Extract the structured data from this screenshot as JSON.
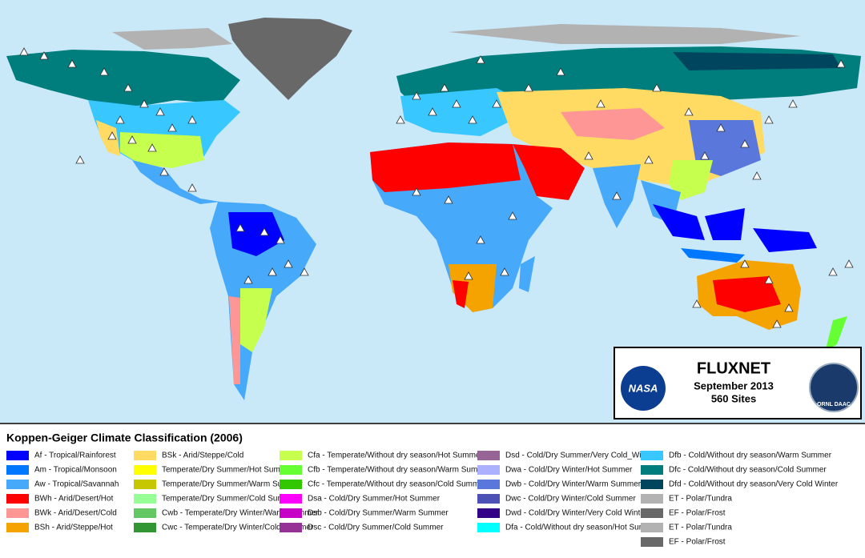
{
  "legend": {
    "title": "Koppen-Geiger Climate Classification (2006)",
    "columns": [
      [
        {
          "label": "Af - Tropical/Rainforest",
          "color": "#0000fe"
        },
        {
          "label": "Am - Tropical/Monsoon",
          "color": "#0077ff"
        },
        {
          "label": "Aw - Tropical/Savannah",
          "color": "#46a9fa"
        },
        {
          "label": "BWh - Arid/Desert/Hot",
          "color": "#fe0000"
        },
        {
          "label": "BWk - Arid/Desert/Cold",
          "color": "#fe9695"
        },
        {
          "label": "BSh - Arid/Steppe/Hot",
          "color": "#f5a301"
        }
      ],
      [
        {
          "label": "BSk - Arid/Steppe/Cold",
          "color": "#ffdb63"
        },
        {
          "label": "Temperate/Dry Summer/Hot Summer",
          "color": "#ffff00"
        },
        {
          "label": "Temperate/Dry Summer/Warm Summer",
          "color": "#c6c700"
        },
        {
          "label": "Temperate/Dry Summer/Cold Summer",
          "color": "#96ff96"
        },
        {
          "label": "Cwb - Temperate/Dry Winter/Warm Summer",
          "color": "#63c764"
        },
        {
          "label": "Cwc - Temperate/Dry Winter/Cold Summer",
          "color": "#329633"
        }
      ],
      [
        {
          "label": "Cfa - Temperate/Without dry season/Hot Summer",
          "color": "#c6ff4e"
        },
        {
          "label": "Cfb - Temperate/Without dry season/Warm Summer",
          "color": "#66ff33"
        },
        {
          "label": "Cfc - Temperate/Without dry season/Cold Summer",
          "color": "#33c701"
        },
        {
          "label": "Dsa - Cold/Dry Summer/Hot Summer",
          "color": "#ff00fe"
        },
        {
          "label": "Dsb - Cold/Dry Summer/Warm Summer",
          "color": "#c600c7"
        },
        {
          "label": "Dsc - Cold/Dry Summer/Cold Summer",
          "color": "#963295"
        }
      ],
      [
        {
          "label": "Dsd - Cold/Dry Summer/Very Cold_Winter",
          "color": "#966495"
        },
        {
          "label": "Dwa - Cold/Dry Winter/Hot Summer",
          "color": "#abb1ff"
        },
        {
          "label": "Dwb - Cold/Dry Winter/Warm Summer",
          "color": "#5a77db"
        },
        {
          "label": "Dwc - Cold/Dry Winter/Cold Summer",
          "color": "#4c51b5"
        },
        {
          "label": "Dwd - Cold/Dry Winter/Very Cold Winter",
          "color": "#320087"
        },
        {
          "label": "Dfa - Cold/Without dry season/Hot Summer",
          "color": "#00ffff"
        }
      ],
      [
        {
          "label": "Dfb - Cold/Without dry season/Warm Summer",
          "color": "#38c7ff"
        },
        {
          "label": "Dfc - Cold/Without dry season/Cold Summer",
          "color": "#007e7d"
        },
        {
          "label": "Dfd - Cold/Without dry season/Very Cold Winter",
          "color": "#00455e"
        },
        {
          "label": "ET - Polar/Tundra",
          "color": "#b2b2b2"
        },
        {
          "label": "EF - Polar/Frost",
          "color": "#686868"
        },
        {
          "label": "ET - Polar/Tundra",
          "color": "#b2b2b2"
        },
        {
          "label": "EF - Polar/Frost",
          "color": "#686868"
        }
      ]
    ]
  },
  "info_box": {
    "title": "FLUXNET",
    "date": "September 2013",
    "sites": "560 Sites",
    "left_logo": "NASA",
    "right_logo": "ORNL DAAC"
  }
}
